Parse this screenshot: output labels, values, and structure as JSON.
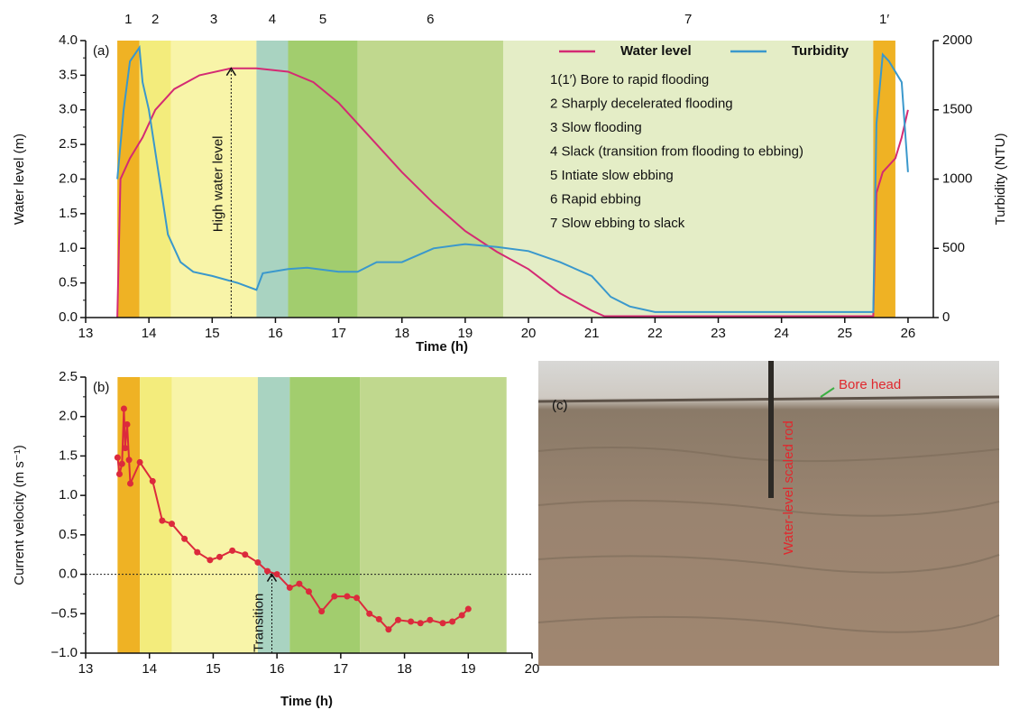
{
  "chart_data": [
    {
      "type": "line",
      "panel_label": "(a)",
      "xlabel": "Time (h)",
      "ylabel": "Water level (m)",
      "y2label": "Turbidity (NTU)",
      "xlim": [
        13,
        26.4
      ],
      "xticks": [
        13,
        14,
        15,
        16,
        17,
        18,
        19,
        20,
        21,
        22,
        23,
        24,
        25,
        26
      ],
      "ylim": [
        0,
        4
      ],
      "yticks": [
        {
          "value": 0,
          "label": "0.0"
        },
        {
          "value": 0.5,
          "label": "0.5"
        },
        {
          "value": 1,
          "label": "1.0"
        },
        {
          "value": 1.5,
          "label": "1.5"
        },
        {
          "value": 2,
          "label": "2.0"
        },
        {
          "value": 2.5,
          "label": "2.5"
        },
        {
          "value": 3,
          "label": "3.0"
        },
        {
          "value": 3.5,
          "label": "3.5"
        },
        {
          "value": 4,
          "label": "4.0"
        }
      ],
      "y2lim": [
        0,
        2000
      ],
      "y2ticks": [
        0,
        500,
        1000,
        1500,
        2000
      ],
      "legend": "upper right",
      "phases": [
        {
          "label": "1",
          "start": 13.5,
          "end": 13.85,
          "color": "#efb224"
        },
        {
          "label": "2",
          "start": 13.85,
          "end": 14.35,
          "color": "#f3ec7c"
        },
        {
          "label": "3",
          "start": 14.35,
          "end": 15.7,
          "color": "#f8f4a8"
        },
        {
          "label": "4",
          "start": 15.7,
          "end": 16.2,
          "color": "#a9d3c1"
        },
        {
          "label": "5",
          "start": 16.2,
          "end": 17.3,
          "color": "#a2cd6e"
        },
        {
          "label": "6",
          "start": 17.3,
          "end": 19.6,
          "color": "#c0d88e"
        },
        {
          "label": "7",
          "start": 19.6,
          "end": 25.45,
          "color": "#e4edc6"
        },
        {
          "label": "1′",
          "start": 25.45,
          "end": 25.8,
          "color": "#efb224"
        }
      ],
      "phase_legend": [
        "1(1′) Bore to rapid flooding",
        "2 Sharply decelerated flooding",
        "3 Slow flooding",
        "4 Slack (transition from flooding to ebbing)",
        "5 Intiate slow ebbing",
        "6 Rapid ebbing",
        "7 Slow ebbing to slack"
      ],
      "annotation": {
        "text": "High water level",
        "x": 15.3,
        "y": 3.6
      },
      "series": [
        {
          "name": "Water level",
          "color": "#d42a73",
          "x": [
            13.5,
            13.55,
            13.7,
            13.9,
            14.1,
            14.4,
            14.8,
            15.3,
            15.7,
            16.2,
            16.6,
            17.0,
            17.5,
            18.0,
            18.5,
            19.0,
            19.5,
            20.0,
            20.5,
            21.0,
            21.2,
            22,
            23,
            24,
            25,
            25.45,
            25.5,
            25.6,
            25.8,
            25.9,
            26.0
          ],
          "values": [
            0,
            2.0,
            2.3,
            2.6,
            3.0,
            3.3,
            3.5,
            3.6,
            3.6,
            3.55,
            3.4,
            3.1,
            2.6,
            2.1,
            1.65,
            1.25,
            0.95,
            0.7,
            0.35,
            0.1,
            0.02,
            0.02,
            0.02,
            0.02,
            0.02,
            0.02,
            1.8,
            2.1,
            2.3,
            2.6,
            3.0
          ]
        },
        {
          "name": "Turbidity",
          "color": "#3a98cc",
          "axis": "y2",
          "x": [
            13.5,
            13.6,
            13.7,
            13.85,
            13.9,
            14.0,
            14.2,
            14.3,
            14.5,
            14.7,
            15.0,
            15.4,
            15.7,
            15.8,
            16.2,
            16.5,
            17.0,
            17.3,
            17.6,
            18.0,
            18.5,
            19.0,
            19.5,
            20.0,
            20.5,
            21.0,
            21.3,
            21.6,
            22,
            23,
            24,
            25,
            25.45,
            25.5,
            25.6,
            25.7,
            25.9,
            26.0
          ],
          "values": [
            1000,
            1500,
            1850,
            1950,
            1700,
            1500,
            900,
            600,
            400,
            330,
            300,
            250,
            200,
            320,
            350,
            360,
            330,
            330,
            400,
            400,
            500,
            530,
            510,
            480,
            400,
            300,
            150,
            80,
            40,
            40,
            40,
            40,
            40,
            1400,
            1900,
            1850,
            1700,
            1050
          ]
        }
      ]
    },
    {
      "type": "line",
      "panel_label": "(b)",
      "xlabel": "Time (h)",
      "ylabel": "Current velocity (m s⁻¹)",
      "xlim": [
        13,
        20
      ],
      "xticks": [
        13,
        14,
        15,
        16,
        17,
        18,
        19,
        20
      ],
      "ylim": [
        -1,
        2.5
      ],
      "yticks": [
        {
          "value": -1,
          "label": "−1.0"
        },
        {
          "value": -0.5,
          "label": "−0.5"
        },
        {
          "value": 0,
          "label": "0.0"
        },
        {
          "value": 0.5,
          "label": "0.5"
        },
        {
          "value": 1,
          "label": "1.0"
        },
        {
          "value": 1.5,
          "label": "1.5"
        },
        {
          "value": 2,
          "label": "2.0"
        },
        {
          "value": 2.5,
          "label": "2.5"
        }
      ],
      "hline": 0,
      "phases": [
        {
          "start": 13.5,
          "end": 13.85,
          "color": "#efb224"
        },
        {
          "start": 13.85,
          "end": 14.35,
          "color": "#f3ec7c"
        },
        {
          "start": 14.35,
          "end": 15.7,
          "color": "#f8f4a8"
        },
        {
          "start": 15.7,
          "end": 16.2,
          "color": "#a9d3c1"
        },
        {
          "start": 16.2,
          "end": 17.3,
          "color": "#a2cd6e"
        },
        {
          "start": 17.3,
          "end": 19.6,
          "color": "#c0d88e"
        }
      ],
      "annotation": {
        "text": "Transition",
        "x": 15.92,
        "y": 0
      },
      "series": [
        {
          "color": "#dc2a3c",
          "x": [
            13.5,
            13.53,
            13.57,
            13.6,
            13.62,
            13.65,
            13.68,
            13.7,
            13.85,
            14.05,
            14.2,
            14.35,
            14.55,
            14.75,
            14.95,
            15.1,
            15.3,
            15.5,
            15.7,
            15.85,
            16.0,
            16.2,
            16.35,
            16.5,
            16.7,
            16.9,
            17.1,
            17.25,
            17.45,
            17.6,
            17.75,
            17.9,
            18.1,
            18.25,
            18.4,
            18.6,
            18.75,
            18.9,
            19.0
          ],
          "values": [
            1.48,
            1.27,
            1.4,
            2.1,
            1.6,
            1.9,
            1.45,
            1.15,
            1.42,
            1.18,
            0.68,
            0.64,
            0.45,
            0.28,
            0.18,
            0.22,
            0.3,
            0.25,
            0.15,
            0.04,
            0.0,
            -0.17,
            -0.12,
            -0.22,
            -0.47,
            -0.28,
            -0.28,
            -0.3,
            -0.5,
            -0.57,
            -0.7,
            -0.58,
            -0.6,
            -0.62,
            -0.58,
            -0.62,
            -0.6,
            -0.52,
            -0.44
          ]
        }
      ]
    }
  ],
  "photo": {
    "panel_label": "(c)",
    "rod_label": "Water-level scaled rod",
    "bore_label": "Bore head"
  }
}
